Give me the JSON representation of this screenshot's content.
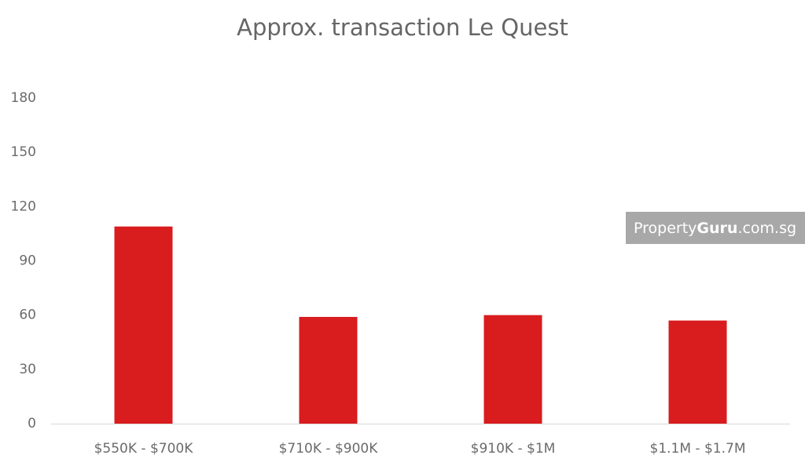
{
  "chart_data": {
    "type": "bar",
    "title": "Approx. transaction Le Quest",
    "categories": [
      "$550K - $700K",
      "$710K - $900K",
      "$910K - $1M",
      "$1.1M - $1.7M"
    ],
    "values": [
      109,
      59,
      60,
      57
    ],
    "color": "#d91c1e",
    "ylim": [
      0,
      180
    ],
    "yticks": [
      0,
      30,
      60,
      90,
      120,
      150,
      180
    ],
    "grid": false,
    "watermark": [
      "Property",
      "Guru",
      ".com.sg"
    ]
  }
}
